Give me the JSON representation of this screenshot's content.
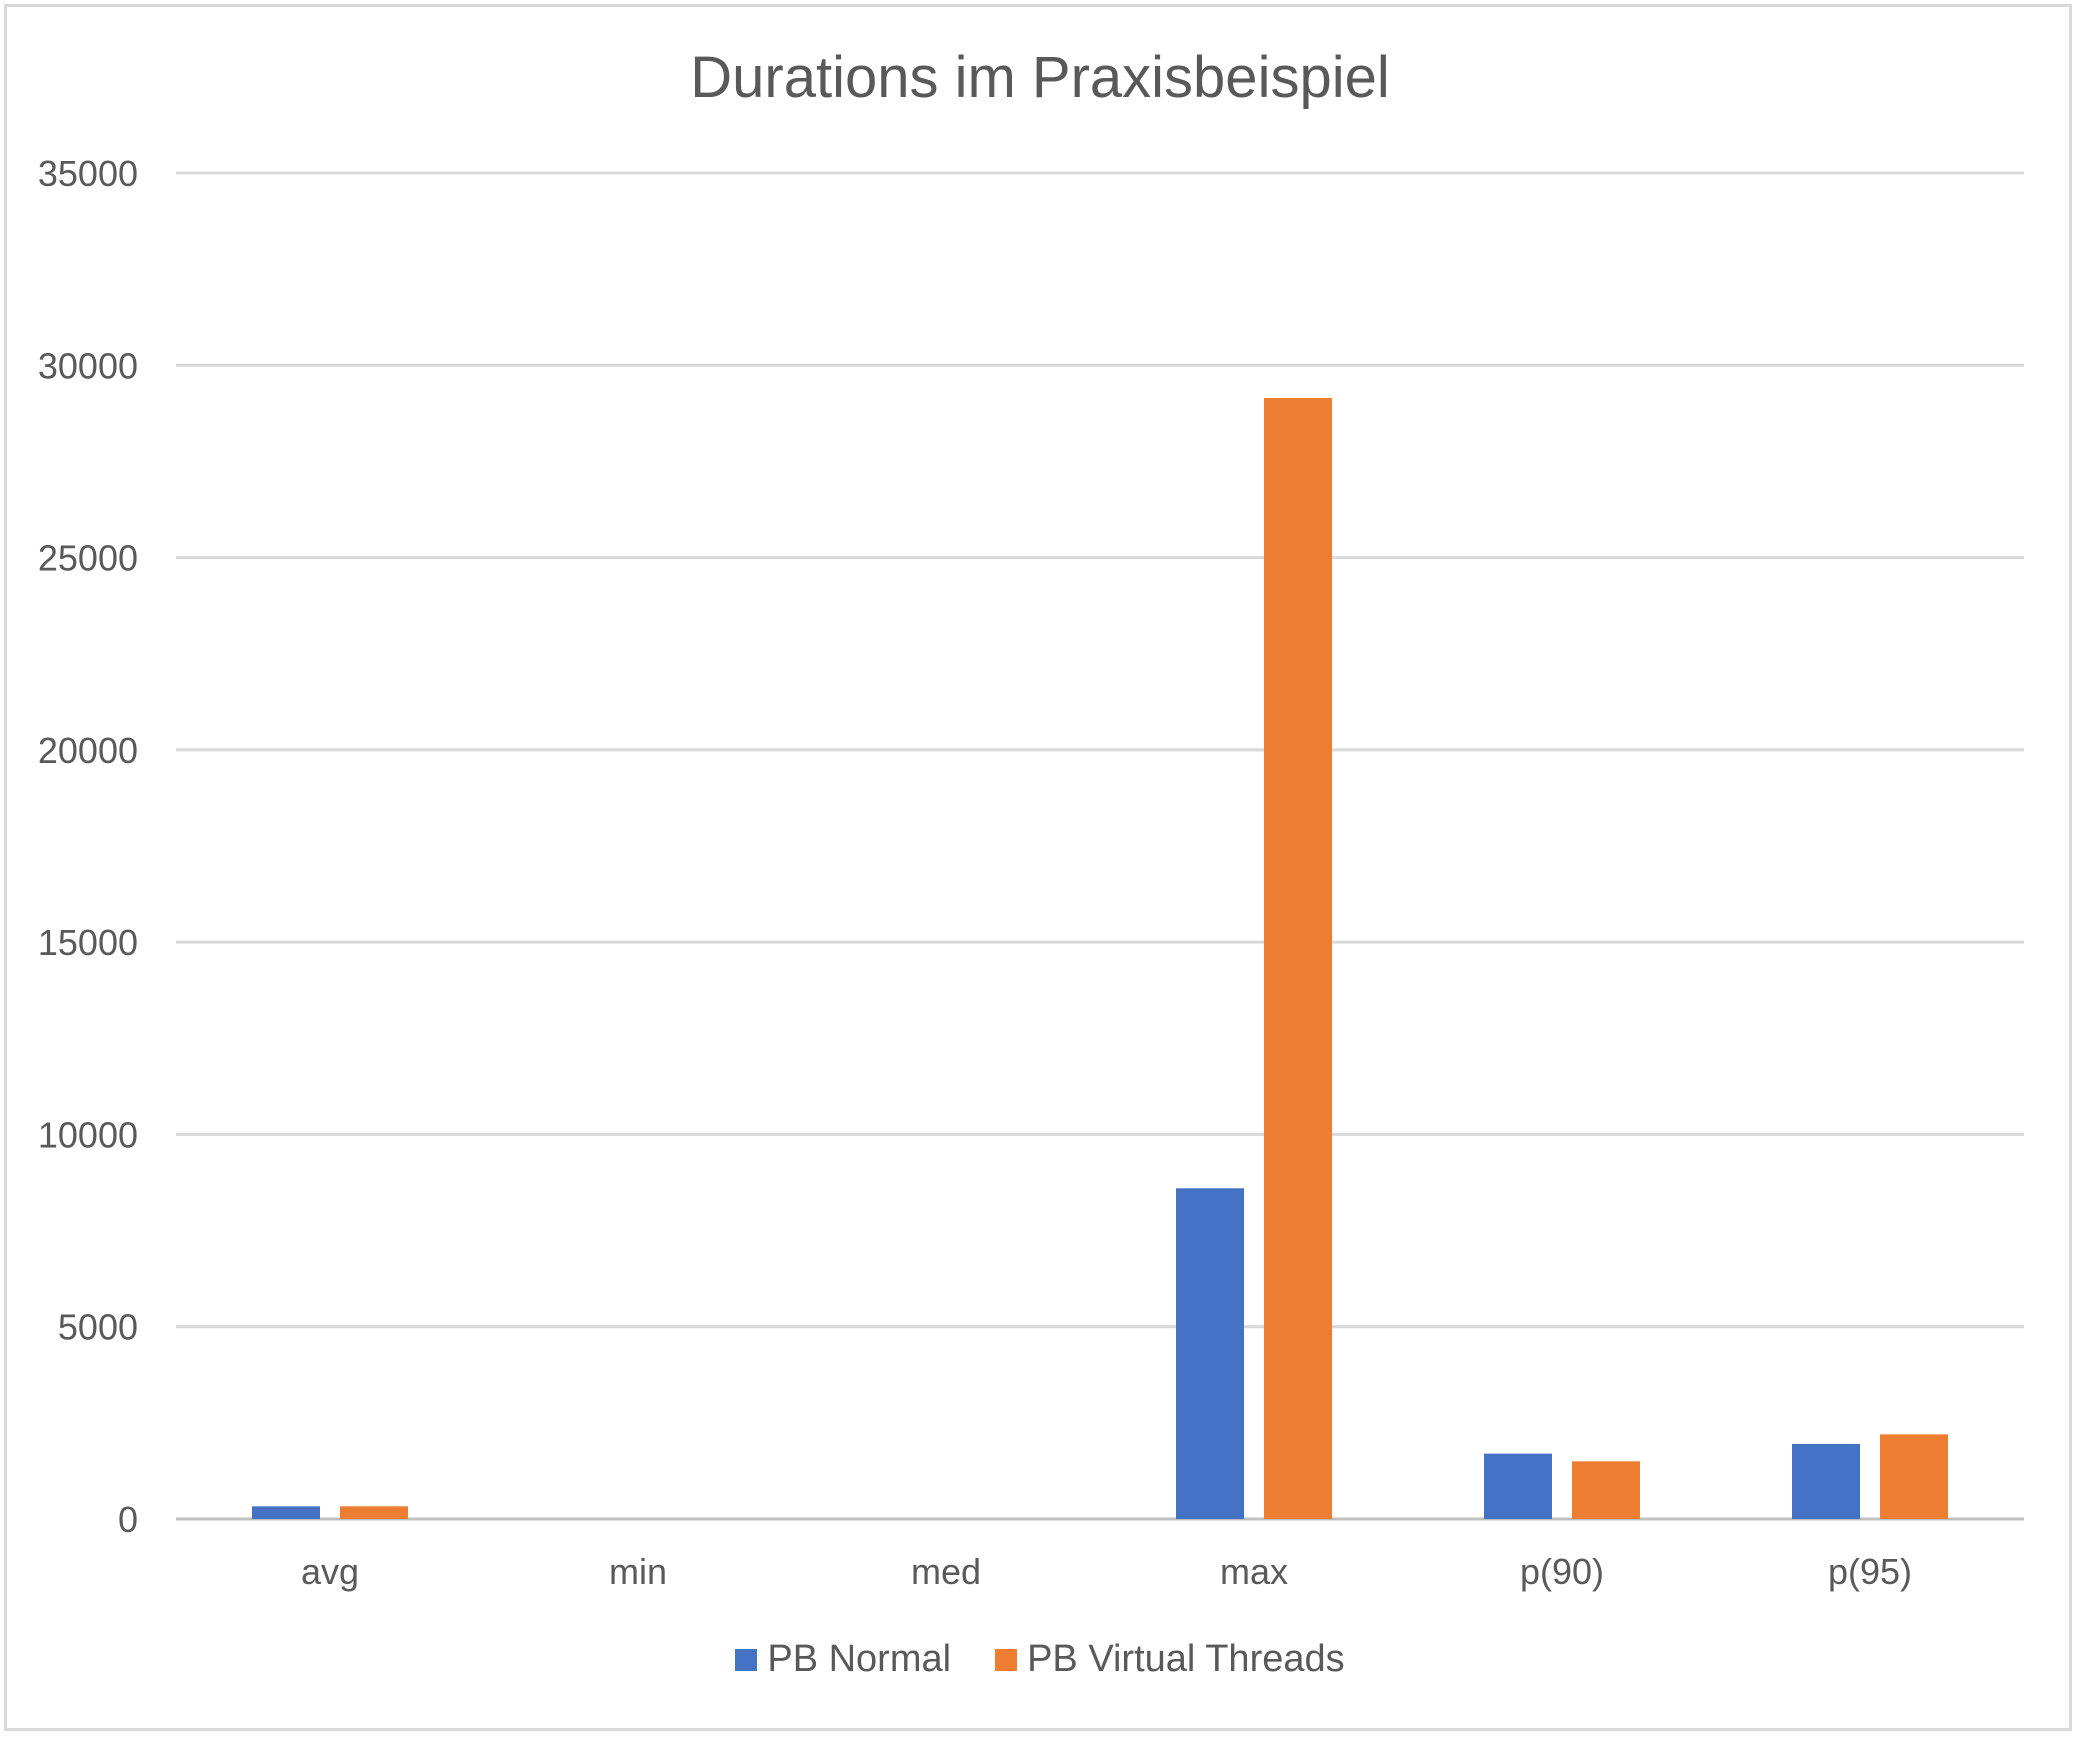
{
  "chart_data": {
    "type": "bar",
    "title": "Durations im Praxisbeispiel",
    "categories": [
      "avg",
      "min",
      "med",
      "max",
      "p(90)",
      "p(95)"
    ],
    "series": [
      {
        "name": "PB Normal",
        "color": "#4472C4",
        "values": [
          330,
          0,
          0,
          8600,
          1700,
          1950
        ]
      },
      {
        "name": "PB Virtual Threads",
        "color": "#ED7D31",
        "values": [
          330,
          0,
          0,
          29150,
          1500,
          2200
        ]
      }
    ],
    "ylim": [
      0,
      35000
    ],
    "yticks": [
      0,
      5000,
      10000,
      15000,
      20000,
      25000,
      30000,
      35000
    ],
    "grid": true,
    "legend_position": "bottom"
  }
}
